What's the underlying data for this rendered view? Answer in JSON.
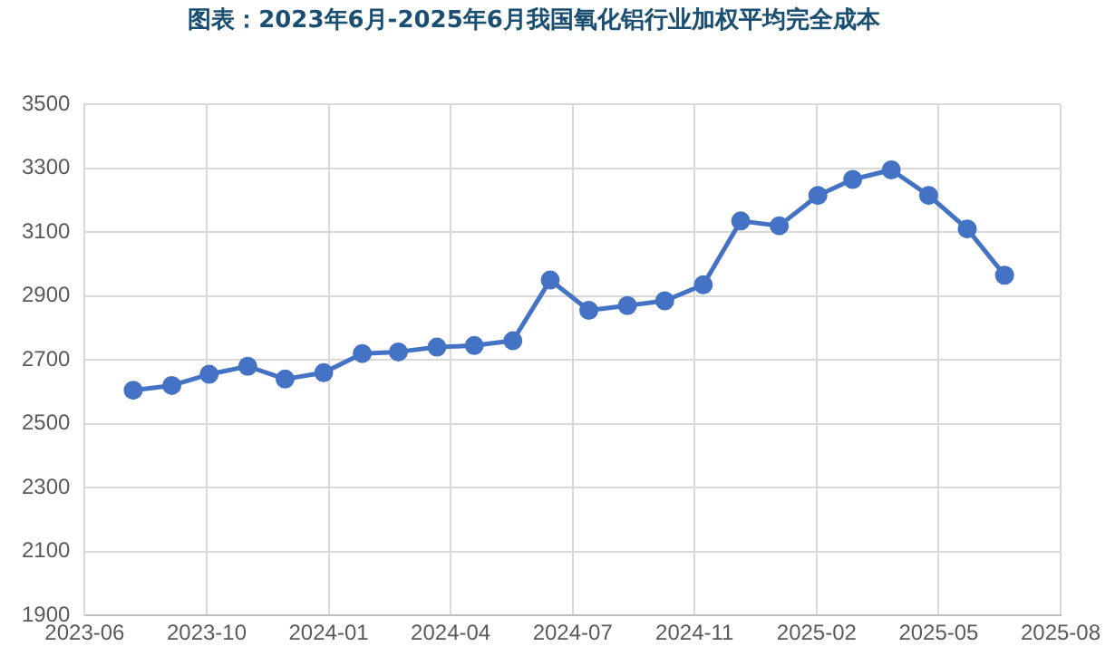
{
  "chart_data": {
    "type": "line",
    "title": "图表：2023年6月-2025年6月我国氧化铝行业加权平均完全成本",
    "x": [
      "2023-08-08",
      "2023-09-08",
      "2023-10-08",
      "2023-11-08",
      "2023-12-08",
      "2024-01-08",
      "2024-02-08",
      "2024-03-08",
      "2024-04-08",
      "2024-05-08",
      "2024-06-08",
      "2024-07-08",
      "2024-08-08",
      "2024-09-08",
      "2024-10-08",
      "2024-11-08",
      "2024-12-08",
      "2025-01-08",
      "2025-02-08",
      "2025-03-08",
      "2025-04-08",
      "2025-05-08",
      "2025-06-08",
      "2025-07-08"
    ],
    "series": [
      {
        "color": "#4472c4",
        "values": [
          2605,
          2620,
          2655,
          2680,
          2640,
          2660,
          2720,
          2725,
          2740,
          2745,
          2760,
          2950,
          2855,
          2870,
          2885,
          2935,
          3135,
          3120,
          3215,
          3265,
          3295,
          3215,
          3110,
          2965
        ]
      }
    ],
    "xlim": [
      "2023-06-30",
      "2025-08-22"
    ],
    "xticks": [
      {
        "value": "2023-06-30",
        "label": "2023-06"
      },
      {
        "value": "2023-10-06",
        "label": "2023-10"
      },
      {
        "value": "2024-01-12",
        "label": "2024-01"
      },
      {
        "value": "2024-04-19",
        "label": "2024-04"
      },
      {
        "value": "2024-07-26",
        "label": "2024-07"
      },
      {
        "value": "2024-11-01",
        "label": "2024-11"
      },
      {
        "value": "2025-02-07",
        "label": "2025-02"
      },
      {
        "value": "2025-05-16",
        "label": "2025-05"
      },
      {
        "value": "2025-08-22",
        "label": "2025-08"
      }
    ],
    "ylim": [
      1900,
      3500
    ],
    "yticks": [
      1900,
      2100,
      2300,
      2500,
      2700,
      2900,
      3100,
      3300,
      3500
    ],
    "grid": true,
    "legend": false,
    "marker": "circle",
    "line_style": "solid"
  }
}
